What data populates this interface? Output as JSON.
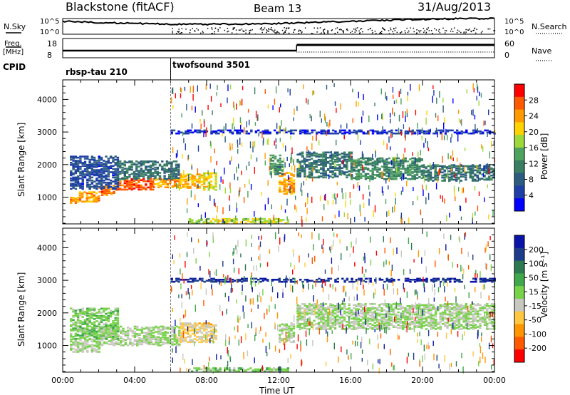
{
  "header": {
    "station": "Blackstone (fitACF)",
    "beam": "Beam 13",
    "date": "31/Aug/2013"
  },
  "strips": {
    "nsky_label": "N.Sky",
    "nsearch_label": "N.Search",
    "noise_ticks": [
      "10^5",
      "10^0"
    ],
    "freq_label": "Freq.",
    "freq_unit": "[MHz]",
    "freq_ticks": [
      "18",
      "8"
    ],
    "nave_label": "Nave",
    "nave_ticks": [
      "60",
      "0"
    ],
    "cpid_label": "CPID",
    "cpid_segments": [
      {
        "name": "rbsp-tau 210",
        "start_hour": 0,
        "end_hour": 6
      },
      {
        "name": "twofsound 3501",
        "start_hour": 6,
        "end_hour": 24
      }
    ]
  },
  "axes": {
    "ylabel": "Slant Range [km]",
    "xlabel": "Time UT",
    "yticks": [
      "1000",
      "2000",
      "3000",
      "4000"
    ],
    "xticks": [
      "00:00",
      "04:00",
      "08:00",
      "12:00",
      "16:00",
      "20:00",
      "00:00"
    ]
  },
  "colorbars": {
    "power": {
      "label": "Power [dB]",
      "ticks": [
        "28",
        "24",
        "20",
        "16",
        "12",
        "8",
        "4"
      ],
      "colors": [
        "#ff0000",
        "#ff5a00",
        "#ff9b00",
        "#ffd200",
        "#9ed93a",
        "#4ea35e",
        "#3a7f63",
        "#2c5c7f",
        "#1f3fa8",
        "#0000ff"
      ]
    },
    "velocity": {
      "label": "Velocity [m s⁻¹]",
      "ticks": [
        "200",
        "100",
        "50",
        "15",
        "-15",
        "-50",
        "-100",
        "-200"
      ],
      "colors": [
        "#0a14a8",
        "#1e3c8c",
        "#2d7a50",
        "#3fa84a",
        "#78d24a",
        "#c8c8c0",
        "#ffc840",
        "#ff9600",
        "#ff5a00",
        "#ff0000"
      ]
    }
  },
  "chart_data": [
    {
      "type": "heatmap",
      "title": "Power",
      "xlabel": "Time UT",
      "ylabel": "Slant Range [km]",
      "xlim": [
        0,
        24
      ],
      "ylim": [
        180,
        4600
      ],
      "colorbar_range_dB": [
        0,
        32
      ],
      "blocks": [
        {
          "t0": 0.4,
          "t1": 0.9,
          "r0": 820,
          "r1": 1000,
          "v": 24
        },
        {
          "t0": 0.9,
          "t1": 2.0,
          "r0": 860,
          "r1": 1150,
          "v": 24
        },
        {
          "t0": 2.0,
          "t1": 3.0,
          "r0": 1060,
          "r1": 1350,
          "v": 26
        },
        {
          "t0": 3.0,
          "t1": 5.0,
          "r0": 1230,
          "r1": 1560,
          "v": 28
        },
        {
          "t0": 5.0,
          "t1": 6.5,
          "r0": 1300,
          "r1": 1580,
          "v": 24
        },
        {
          "t0": 6.5,
          "t1": 7.8,
          "r0": 1280,
          "r1": 1700,
          "v": 22
        },
        {
          "t0": 7.8,
          "t1": 8.5,
          "r0": 1220,
          "r1": 1750,
          "v": 20
        },
        {
          "t0": 0.4,
          "t1": 3.0,
          "r0": 1250,
          "r1": 2250,
          "v": 6
        },
        {
          "t0": 3.0,
          "t1": 6.5,
          "r0": 1550,
          "r1": 2100,
          "v": 10
        },
        {
          "t0": 12.0,
          "t1": 12.8,
          "r0": 1100,
          "r1": 1750,
          "v": 24
        },
        {
          "t0": 11.5,
          "t1": 12.2,
          "r0": 1700,
          "r1": 2300,
          "v": 12
        },
        {
          "t0": 13.0,
          "t1": 16.0,
          "r0": 1600,
          "r1": 2400,
          "v": 10
        },
        {
          "t0": 16.0,
          "t1": 20.0,
          "r0": 1550,
          "r1": 2200,
          "v": 12
        },
        {
          "t0": 20.0,
          "t1": 24.0,
          "r0": 1500,
          "r1": 2000,
          "v": 10
        },
        {
          "t0": 6.0,
          "t1": 24.0,
          "r0": 2950,
          "r1": 3050,
          "v": 4
        },
        {
          "t0": 7.0,
          "t1": 12.5,
          "r0": 200,
          "r1": 340,
          "v": 18
        }
      ]
    },
    {
      "type": "heatmap",
      "title": "Velocity",
      "xlabel": "Time UT",
      "ylabel": "Slant Range [km]",
      "xlim": [
        0,
        24
      ],
      "ylim": [
        180,
        4600
      ],
      "colorbar_range_ms": [
        -250,
        250
      ],
      "blocks": [
        {
          "t0": 0.4,
          "t1": 2.0,
          "r0": 800,
          "r1": 1200,
          "v": 0
        },
        {
          "t0": 2.0,
          "t1": 6.5,
          "r0": 1000,
          "r1": 1600,
          "v": 0
        },
        {
          "t0": 0.4,
          "t1": 3.0,
          "r0": 1200,
          "r1": 2150,
          "v": 30
        },
        {
          "t0": 6.5,
          "t1": 8.5,
          "r0": 1100,
          "r1": 1700,
          "v": -60
        },
        {
          "t0": 12.0,
          "t1": 12.8,
          "r0": 1100,
          "r1": 1700,
          "v": 0
        },
        {
          "t0": 13.0,
          "t1": 24.0,
          "r0": 1500,
          "r1": 2300,
          "v": 0
        },
        {
          "t0": 6.0,
          "t1": 24.0,
          "r0": 2950,
          "r1": 3050,
          "v": 200
        },
        {
          "t0": 7.0,
          "t1": 12.5,
          "r0": 200,
          "r1": 300,
          "v": 30
        }
      ]
    }
  ]
}
